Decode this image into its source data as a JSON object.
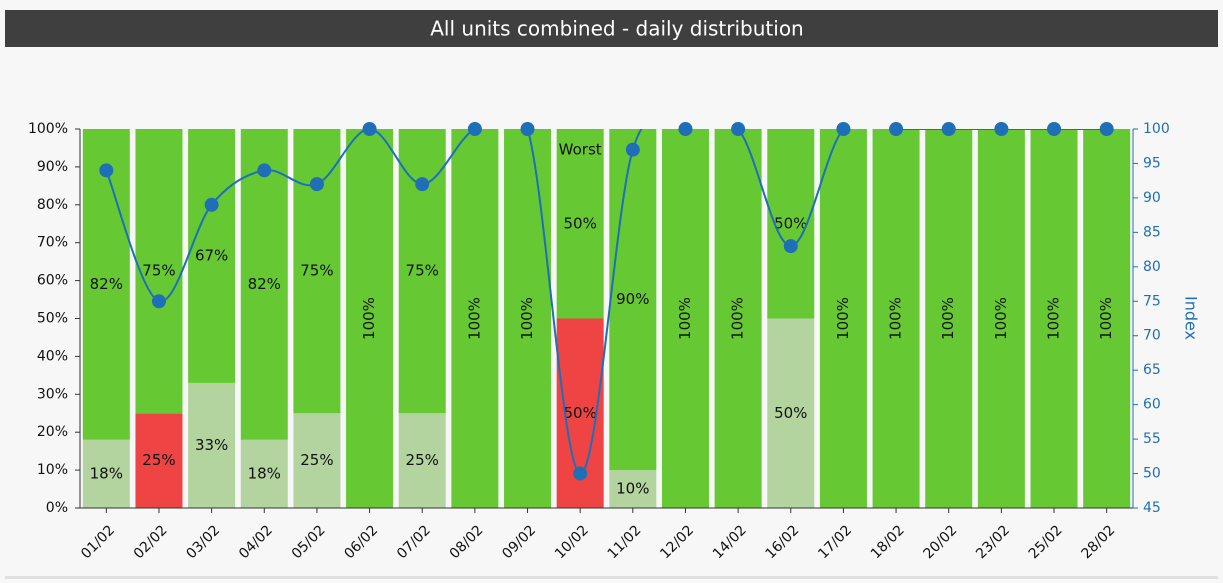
{
  "chart_data": {
    "type": "bar",
    "stacked": true,
    "title": "All units combined - daily distribution",
    "categories": [
      "01/02",
      "02/02",
      "03/02",
      "04/02",
      "05/02",
      "06/02",
      "07/02",
      "08/02",
      "09/02",
      "10/02",
      "11/02",
      "12/02",
      "14/02",
      "16/02",
      "17/02",
      "18/02",
      "20/02",
      "23/02",
      "25/02",
      "28/02"
    ],
    "series": [
      {
        "color": "#ee4444",
        "values": [
          null,
          25,
          null,
          null,
          null,
          null,
          null,
          null,
          null,
          50,
          null,
          null,
          null,
          null,
          null,
          null,
          null,
          null,
          null,
          null
        ],
        "value_labels": [
          null,
          "25%",
          null,
          null,
          null,
          null,
          null,
          null,
          null,
          "50%",
          null,
          null,
          null,
          null,
          null,
          null,
          null,
          null,
          null,
          null
        ]
      },
      {
        "color": "#b3d49f",
        "values": [
          18,
          null,
          33,
          18,
          25,
          null,
          25,
          null,
          null,
          null,
          10,
          null,
          null,
          50,
          null,
          null,
          null,
          null,
          null,
          null
        ],
        "value_labels": [
          "18%",
          null,
          "33%",
          "18%",
          "25%",
          null,
          "25%",
          null,
          null,
          null,
          "10%",
          null,
          null,
          "50%",
          null,
          null,
          null,
          null,
          null,
          null
        ]
      },
      {
        "color": "#66c933",
        "values": [
          82,
          75,
          67,
          82,
          75,
          100,
          75,
          100,
          100,
          50,
          90,
          100,
          100,
          50,
          100,
          100,
          100,
          100,
          100,
          100
        ],
        "value_labels": [
          "82%",
          "75%",
          "67%",
          "82%",
          "75%",
          "100%",
          "75%",
          "100%",
          "100%",
          "50%",
          "90%",
          "100%",
          "100%",
          "50%",
          "100%",
          "100%",
          "100%",
          "100%",
          "100%",
          "100%"
        ]
      },
      {
        "type": "line",
        "axis": "y2",
        "color": "#1f6fb8",
        "values": [
          94,
          75,
          89,
          94,
          92,
          100,
          92,
          100,
          100,
          50,
          97,
          100,
          100,
          83,
          100,
          100,
          100,
          100,
          100,
          100
        ]
      }
    ],
    "ylim": [
      0,
      100
    ],
    "yticks": [
      {
        "value": 0,
        "label": "0%"
      },
      {
        "value": 10,
        "label": "10%"
      },
      {
        "value": 20,
        "label": "20%"
      },
      {
        "value": 30,
        "label": "30%"
      },
      {
        "value": 40,
        "label": "40%"
      },
      {
        "value": 50,
        "label": "50%"
      },
      {
        "value": 60,
        "label": "60%"
      },
      {
        "value": 70,
        "label": "70%"
      },
      {
        "value": 80,
        "label": "80%"
      },
      {
        "value": 90,
        "label": "90%"
      },
      {
        "value": 100,
        "label": "100%"
      }
    ],
    "y2lim": [
      45,
      100
    ],
    "y2ticks": [
      45,
      50,
      55,
      60,
      65,
      70,
      75,
      80,
      85,
      90,
      95,
      100
    ],
    "y2label": "Index",
    "annotations": [
      {
        "text": "Worst",
        "x": "10/02"
      }
    ]
  }
}
